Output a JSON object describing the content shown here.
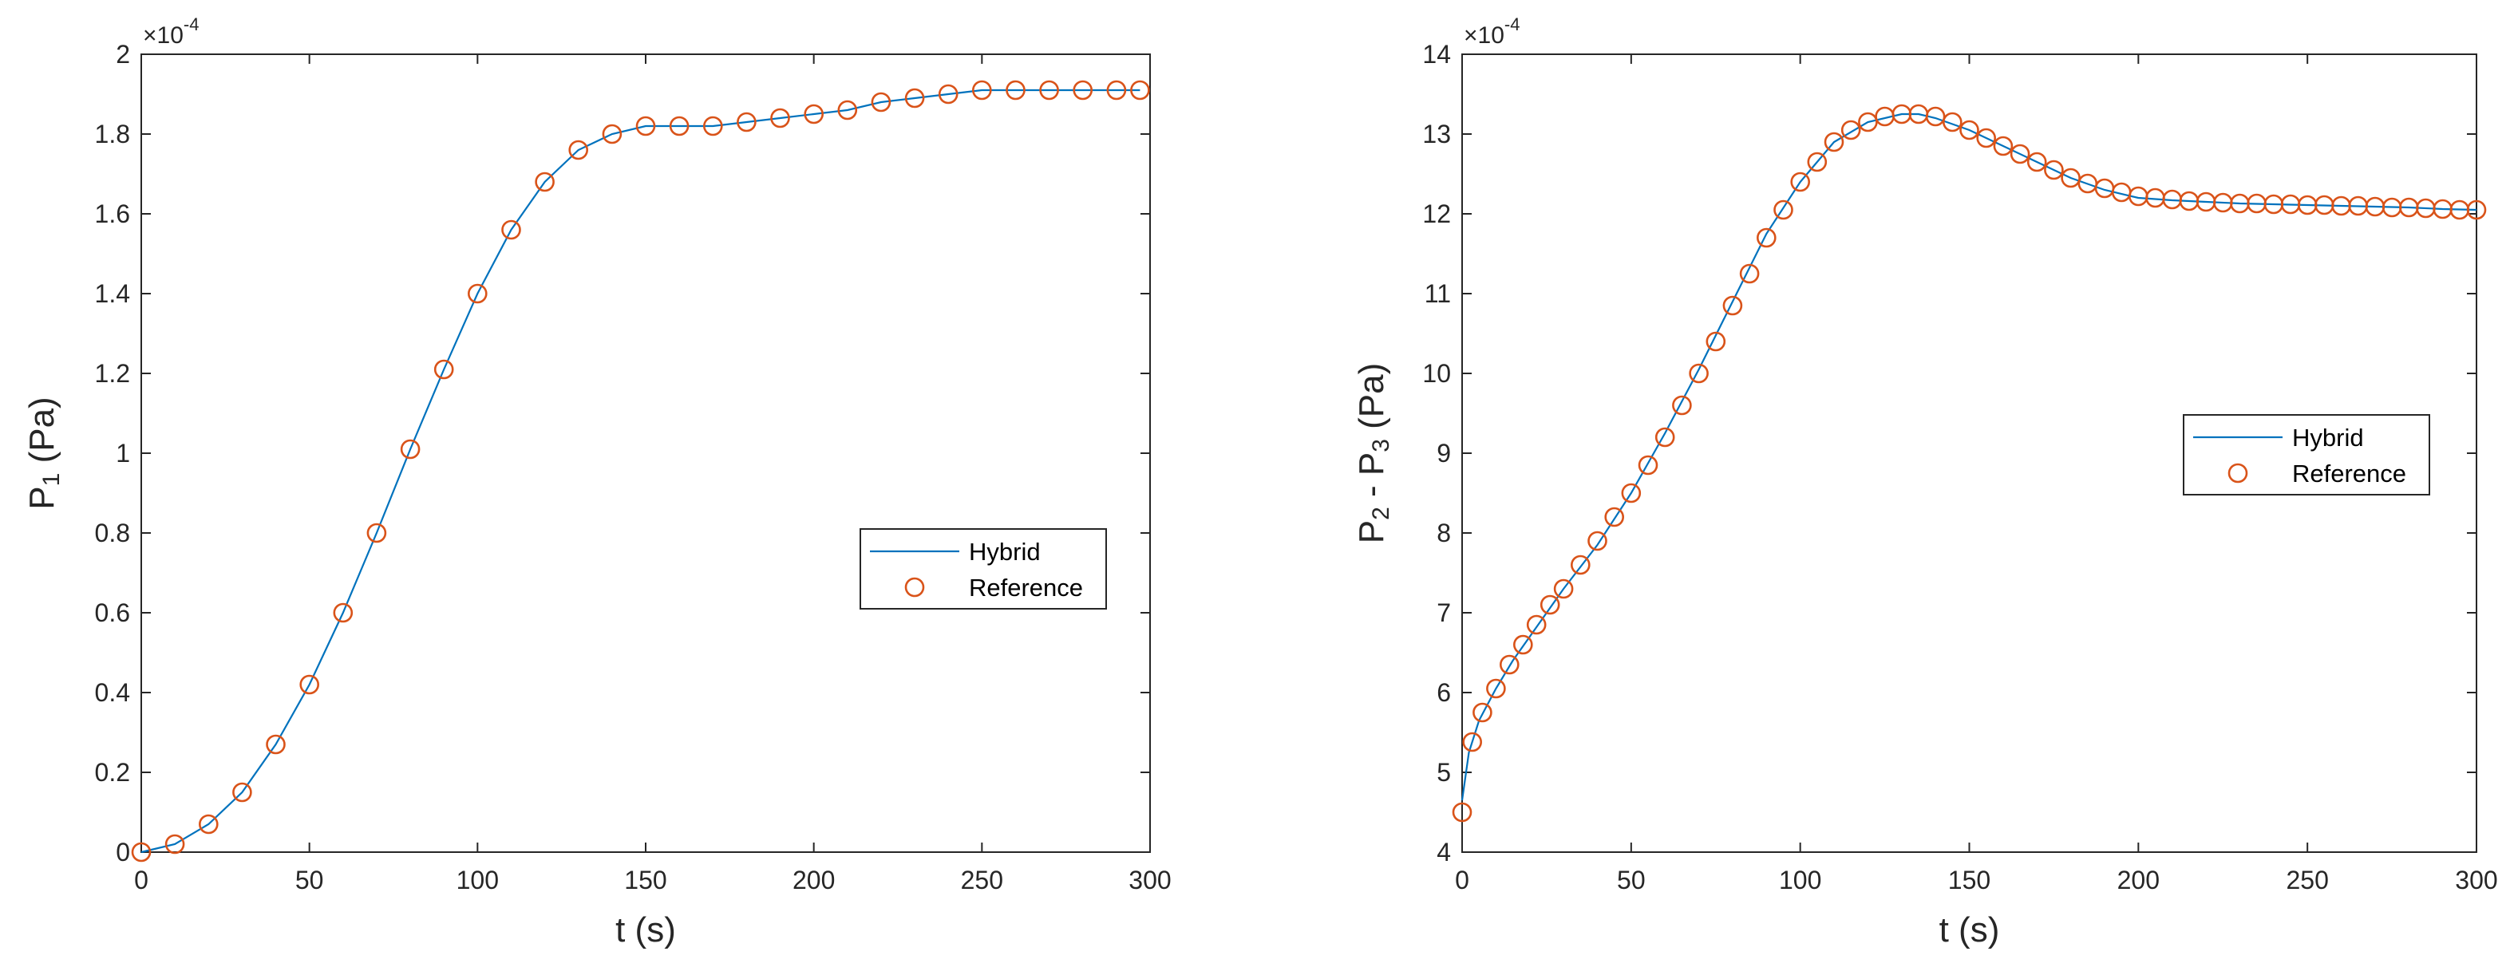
{
  "chart_data": [
    {
      "type": "line",
      "title": "",
      "xlabel": "t (s)",
      "ylabel": {
        "main": "P",
        "sub1": "1",
        "tail": " (Pa)"
      },
      "exponent_label": "×10",
      "exponent_power": "-4",
      "xlim": [
        0,
        300
      ],
      "ylim": [
        0,
        2
      ],
      "xticks": [
        0,
        50,
        100,
        150,
        200,
        250,
        300
      ],
      "xtick_labels": [
        "0",
        "50",
        "100",
        "150",
        "200",
        "250",
        "300"
      ],
      "yticks": [
        0,
        0.2,
        0.4,
        0.6,
        0.8,
        1,
        1.2,
        1.4,
        1.6,
        1.8,
        2
      ],
      "ytick_labels": [
        "0",
        "0.2",
        "0.4",
        "0.6",
        "0.8",
        "1",
        "1.2",
        "1.4",
        "1.6",
        "1.8",
        "2"
      ],
      "grid": false,
      "legend": {
        "position": "east",
        "entries": [
          "Hybrid",
          "Reference"
        ]
      },
      "series": [
        {
          "name": "Hybrid",
          "style": "line",
          "color": "#0072BD",
          "x": [
            0,
            10,
            20,
            30,
            40,
            50,
            60,
            70,
            80,
            90,
            100,
            110,
            120,
            130,
            140,
            150,
            160,
            170,
            180,
            190,
            200,
            210,
            220,
            230,
            240,
            250,
            260,
            270,
            280,
            290,
            297
          ],
          "y": [
            0,
            0.02,
            0.07,
            0.15,
            0.27,
            0.42,
            0.6,
            0.8,
            1.01,
            1.21,
            1.4,
            1.56,
            1.68,
            1.76,
            1.8,
            1.82,
            1.82,
            1.82,
            1.83,
            1.84,
            1.85,
            1.86,
            1.88,
            1.89,
            1.9,
            1.91,
            1.91,
            1.91,
            1.91,
            1.91,
            1.91
          ]
        },
        {
          "name": "Reference",
          "style": "marker",
          "marker": "circle",
          "color": "#D95319",
          "x": [
            0,
            10,
            20,
            30,
            40,
            50,
            60,
            70,
            80,
            90,
            100,
            110,
            120,
            130,
            140,
            150,
            160,
            170,
            180,
            190,
            200,
            210,
            220,
            230,
            240,
            250,
            260,
            270,
            280,
            290,
            297
          ],
          "y": [
            0,
            0.02,
            0.07,
            0.15,
            0.27,
            0.42,
            0.6,
            0.8,
            1.01,
            1.21,
            1.4,
            1.56,
            1.68,
            1.76,
            1.8,
            1.82,
            1.82,
            1.82,
            1.83,
            1.84,
            1.85,
            1.86,
            1.88,
            1.89,
            1.9,
            1.91,
            1.91,
            1.91,
            1.91,
            1.91,
            1.91
          ]
        }
      ]
    },
    {
      "type": "line",
      "title": "",
      "xlabel": "t (s)",
      "ylabel": {
        "main": "P",
        "sub1": "2",
        "mid": " - P",
        "sub2": "3",
        "tail": " (Pa)"
      },
      "exponent_label": "×10",
      "exponent_power": "-4",
      "xlim": [
        0,
        300
      ],
      "ylim": [
        4,
        14
      ],
      "xticks": [
        0,
        50,
        100,
        150,
        200,
        250,
        300
      ],
      "xtick_labels": [
        "0",
        "50",
        "100",
        "150",
        "200",
        "250",
        "300"
      ],
      "yticks": [
        4,
        5,
        6,
        7,
        8,
        9,
        10,
        11,
        12,
        13,
        14
      ],
      "ytick_labels": [
        "4",
        "5",
        "6",
        "7",
        "8",
        "9",
        "10",
        "11",
        "12",
        "13",
        "14"
      ],
      "grid": false,
      "legend": {
        "position": "east",
        "entries": [
          "Hybrid",
          "Reference"
        ]
      },
      "series": [
        {
          "name": "Hybrid",
          "style": "line",
          "color": "#0072BD",
          "x": [
            0,
            2,
            5,
            10,
            15,
            20,
            25,
            30,
            40,
            50,
            60,
            70,
            80,
            90,
            100,
            110,
            120,
            130,
            135,
            140,
            150,
            160,
            170,
            180,
            190,
            200,
            210,
            220,
            230,
            240,
            250,
            260,
            270,
            280,
            290,
            300
          ],
          "y": [
            4.65,
            5.25,
            5.65,
            6.05,
            6.4,
            6.7,
            7.0,
            7.3,
            7.85,
            8.5,
            9.25,
            10.05,
            10.9,
            11.75,
            12.4,
            12.9,
            13.15,
            13.25,
            13.25,
            13.2,
            13.05,
            12.85,
            12.65,
            12.45,
            12.3,
            12.2,
            12.17,
            12.15,
            12.13,
            12.12,
            12.11,
            12.1,
            12.09,
            12.08,
            12.06,
            12.05
          ]
        },
        {
          "name": "Reference",
          "style": "marker",
          "marker": "circle",
          "color": "#D95319",
          "x": [
            0,
            3,
            6,
            10,
            14,
            18,
            22,
            26,
            30,
            35,
            40,
            45,
            50,
            55,
            60,
            65,
            70,
            75,
            80,
            85,
            90,
            95,
            100,
            105,
            110,
            115,
            120,
            125,
            130,
            135,
            140,
            145,
            150,
            155,
            160,
            165,
            170,
            175,
            180,
            185,
            190,
            195,
            200,
            205,
            210,
            215,
            220,
            225,
            230,
            235,
            240,
            245,
            250,
            255,
            260,
            265,
            270,
            275,
            280,
            285,
            290,
            295,
            300
          ],
          "y": [
            4.5,
            5.38,
            5.75,
            6.05,
            6.35,
            6.6,
            6.85,
            7.1,
            7.3,
            7.6,
            7.9,
            8.2,
            8.5,
            8.85,
            9.2,
            9.6,
            10.0,
            10.4,
            10.85,
            11.25,
            11.7,
            12.05,
            12.4,
            12.65,
            12.9,
            13.05,
            13.15,
            13.22,
            13.25,
            13.25,
            13.22,
            13.15,
            13.05,
            12.95,
            12.85,
            12.75,
            12.65,
            12.55,
            12.45,
            12.38,
            12.32,
            12.27,
            12.22,
            12.2,
            12.18,
            12.16,
            12.15,
            12.14,
            12.13,
            12.13,
            12.12,
            12.12,
            12.11,
            12.11,
            12.1,
            12.1,
            12.09,
            12.08,
            12.08,
            12.07,
            12.06,
            12.05,
            12.05
          ]
        }
      ]
    }
  ]
}
